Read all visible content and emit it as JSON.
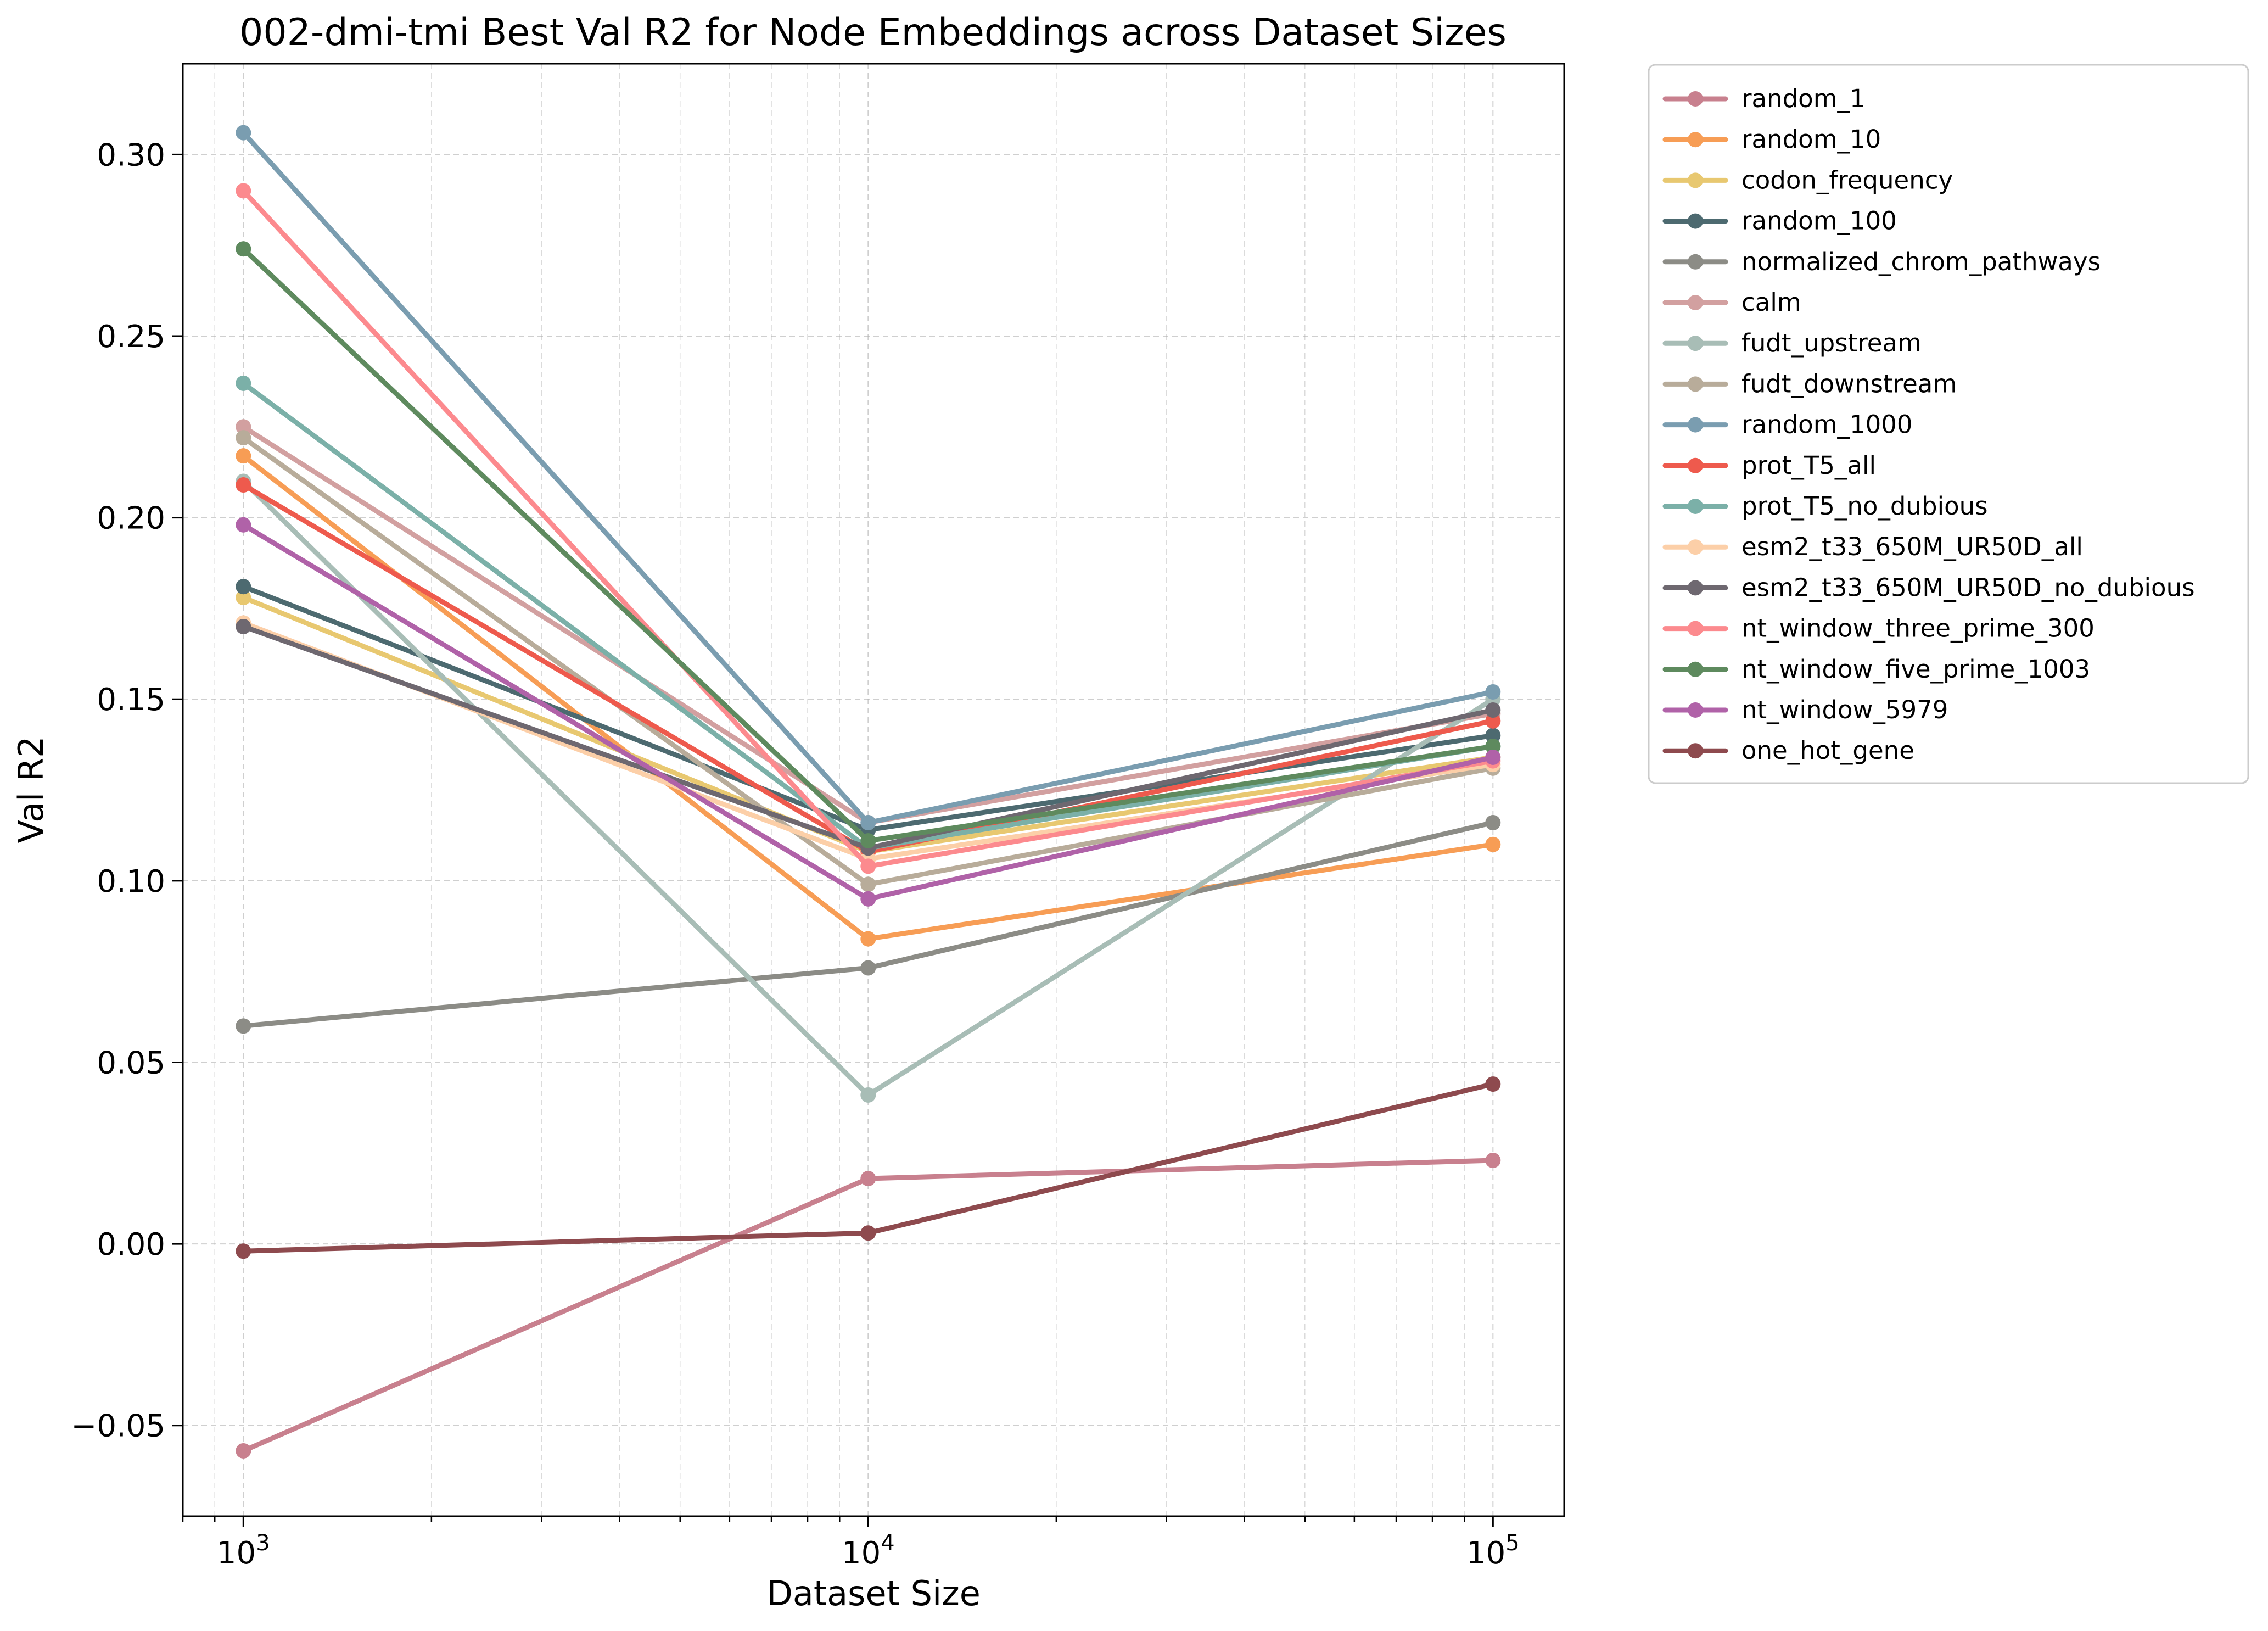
{
  "chart_data": {
    "type": "line",
    "title": "002-dmi-tmi Best Val R2 for Node Embeddings across Dataset Sizes",
    "xlabel": "Dataset Size",
    "ylabel": "Val R2",
    "xscale": "log",
    "x": [
      1000,
      10000,
      100000
    ],
    "xlim": [
      800,
      130000
    ],
    "ylim": [
      -0.075,
      0.325
    ],
    "yticks": [
      -0.05,
      0.0,
      0.05,
      0.1,
      0.15,
      0.2,
      0.25,
      0.3
    ],
    "ytick_labels": [
      "−0.05",
      "0.00",
      "0.05",
      "0.10",
      "0.15",
      "0.20",
      "0.25",
      "0.30"
    ],
    "xtick_labels": [
      {
        "base": "10",
        "exp": "3"
      },
      {
        "base": "10",
        "exp": "4"
      },
      {
        "base": "10",
        "exp": "5"
      }
    ],
    "grid": true,
    "legend_position": "outside-right",
    "series": [
      {
        "name": "random_1",
        "color": "#C8808E",
        "values": [
          -0.057,
          0.018,
          0.023
        ]
      },
      {
        "name": "random_10",
        "color": "#F79D55",
        "values": [
          0.217,
          0.084,
          0.11
        ]
      },
      {
        "name": "codon_frequency",
        "color": "#E8C870",
        "values": [
          0.178,
          0.108,
          0.134
        ]
      },
      {
        "name": "random_100",
        "color": "#4D6A70",
        "values": [
          0.181,
          0.114,
          0.14
        ]
      },
      {
        "name": "normalized_chrom_pathways",
        "color": "#8C8C86",
        "values": [
          0.06,
          0.076,
          0.116
        ]
      },
      {
        "name": "calm",
        "color": "#D2A0A0",
        "values": [
          0.225,
          0.116,
          0.146
        ]
      },
      {
        "name": "fudt_upstream",
        "color": "#A8BDB6",
        "values": [
          0.21,
          0.041,
          0.15
        ]
      },
      {
        "name": "fudt_downstream",
        "color": "#B8AC9A",
        "values": [
          0.222,
          0.099,
          0.131
        ]
      },
      {
        "name": "random_1000",
        "color": "#7A9DB0",
        "values": [
          0.306,
          0.116,
          0.152
        ]
      },
      {
        "name": "prot_T5_all",
        "color": "#EE5A4D",
        "values": [
          0.209,
          0.108,
          0.144
        ]
      },
      {
        "name": "prot_T5_no_dubious",
        "color": "#7BB0A8",
        "values": [
          0.237,
          0.109,
          0.137
        ]
      },
      {
        "name": "esm2_t33_650M_UR50D_all",
        "color": "#FCCFA8",
        "values": [
          0.171,
          0.106,
          0.132
        ]
      },
      {
        "name": "esm2_t33_650M_UR50D_no_dubious",
        "color": "#6E6870",
        "values": [
          0.17,
          0.109,
          0.147
        ]
      },
      {
        "name": "nt_window_three_prime_300",
        "color": "#FC8A8E",
        "values": [
          0.29,
          0.104,
          0.133
        ]
      },
      {
        "name": "nt_window_five_prime_1003",
        "color": "#5E8A5E",
        "values": [
          0.274,
          0.111,
          0.137
        ]
      },
      {
        "name": "nt_window_5979",
        "color": "#B062A8",
        "values": [
          0.198,
          0.095,
          0.134
        ]
      },
      {
        "name": "one_hot_gene",
        "color": "#8E4A4E",
        "values": [
          -0.002,
          0.003,
          0.044
        ]
      }
    ]
  }
}
